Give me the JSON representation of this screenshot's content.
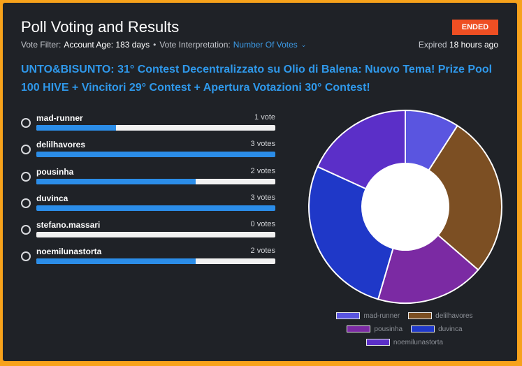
{
  "header": {
    "title": "Poll Voting and Results",
    "status": "ENDED",
    "vote_filter_label": "Vote Filter:",
    "vote_filter_value": "Account Age: 183 days",
    "interpretation_label": "Vote Interpretation:",
    "interpretation_value": "Number Of Votes",
    "expired_prefix": "Expired",
    "expired_value": "18 hours ago"
  },
  "question": "UNTO&BISUNTO: 31° Contest Decentralizzato su Olio di Balena: Nuovo Tema! Prize Pool 100 HIVE + Vincitori 29° Contest + Apertura Votazioni 30° Contest!",
  "options": [
    {
      "name": "mad-runner",
      "votes_label": "1 vote",
      "votes": 1
    },
    {
      "name": "delilhavores",
      "votes_label": "3 votes",
      "votes": 3
    },
    {
      "name": "pousinha",
      "votes_label": "2 votes",
      "votes": 2
    },
    {
      "name": "duvinca",
      "votes_label": "3 votes",
      "votes": 3
    },
    {
      "name": "stefano.massari",
      "votes_label": "0 votes",
      "votes": 0
    },
    {
      "name": "noemilunastorta",
      "votes_label": "2 votes",
      "votes": 2
    }
  ],
  "chart_data": {
    "type": "pie",
    "categories": [
      "mad-runner",
      "delilhavores",
      "pousinha",
      "duvinca",
      "noemilunastorta"
    ],
    "values": [
      1,
      3,
      2,
      3,
      2
    ],
    "colors": [
      "#5a55e0",
      "#7c4f23",
      "#7b2aa3",
      "#1f38c8",
      "#5b2fc8"
    ],
    "legend_position": "bottom"
  },
  "colors": {
    "accent": "#2f98ea",
    "status": "#ee4f23",
    "frame": "#f7a21b"
  }
}
